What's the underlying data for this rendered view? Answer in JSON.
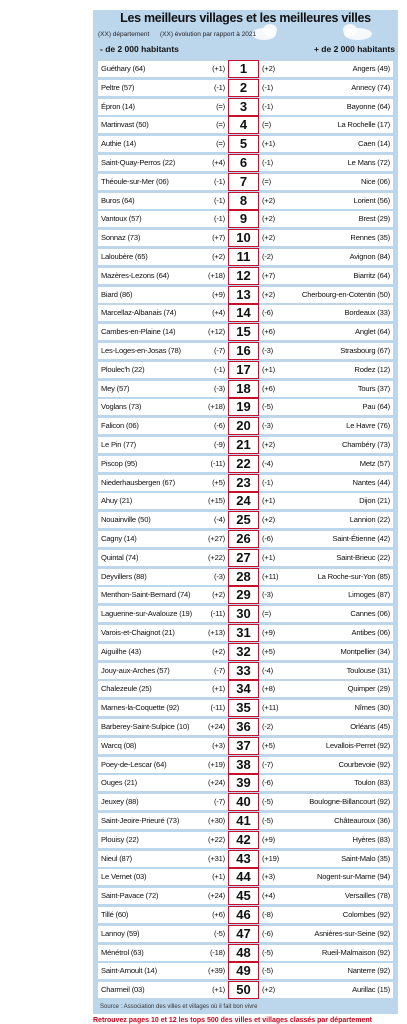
{
  "header": {
    "title": "Les meilleurs villages et les meilleures villes",
    "legend_department": "(XX) département",
    "legend_evolution": "(XX) évolution par rapport à 2021",
    "left_column": "- de 2 000 habitants",
    "right_column": "+ de 2 000 habitants"
  },
  "table": {
    "rows": [
      [
        "Guéthary (64)",
        "(+1)",
        1,
        "(+2)",
        "Angers (49)"
      ],
      [
        "Peltre (57)",
        "(-1)",
        2,
        "(-1)",
        "Annecy (74)"
      ],
      [
        "Épron (14)",
        "(=)",
        3,
        "(-1)",
        "Bayonne (64)"
      ],
      [
        "Martinvast (50)",
        "(=)",
        4,
        "(=)",
        "La Rochelle (17)"
      ],
      [
        "Authie (14)",
        "(=)",
        5,
        "(+1)",
        "Caen (14)"
      ],
      [
        "Saint-Quay-Perros (22)",
        "(+4)",
        6,
        "(-1)",
        "Le Mans (72)"
      ],
      [
        "Théoule-sur-Mer (06)",
        "(-1)",
        7,
        "(=)",
        "Nice (06)"
      ],
      [
        "Buros (64)",
        "(-1)",
        8,
        "(+2)",
        "Lorient (56)"
      ],
      [
        "Vantoux (57)",
        "(-1)",
        9,
        "(+2)",
        "Brest (29)"
      ],
      [
        "Sonnaz (73)",
        "(+7)",
        10,
        "(+2)",
        "Rennes (35)"
      ],
      [
        "Laloubère (65)",
        "(+2)",
        11,
        "(-2)",
        "Avignon (84)"
      ],
      [
        "Mazères-Lezons (64)",
        "(+18)",
        12,
        "(+7)",
        "Biarritz (64)"
      ],
      [
        "Biard (86)",
        "(+9)",
        13,
        "(+2)",
        "Cherbourg-en-Cotentin (50)"
      ],
      [
        "Marcellaz-Albanais (74)",
        "(+4)",
        14,
        "(-6)",
        "Bordeaux (33)"
      ],
      [
        "Cambes-en-Plaine (14)",
        "(+12)",
        15,
        "(+6)",
        "Anglet (64)"
      ],
      [
        "Les-Loges-en-Josas (78)",
        "(-7)",
        16,
        "(-3)",
        "Strasbourg (67)"
      ],
      [
        "Ploulec'h (22)",
        "(-1)",
        17,
        "(+1)",
        "Rodez (12)"
      ],
      [
        "Mey (57)",
        "(-3)",
        18,
        "(+6)",
        "Tours (37)"
      ],
      [
        "Voglans (73)",
        "(+18)",
        19,
        "(-5)",
        "Pau (64)"
      ],
      [
        "Falicon (06)",
        "(-6)",
        20,
        "(-3)",
        "Le Havre (76)"
      ],
      [
        "Le Pin (77)",
        "(-9)",
        21,
        "(+2)",
        "Chambéry (73)"
      ],
      [
        "Piscop (95)",
        "(-11)",
        22,
        "(-4)",
        "Metz (57)"
      ],
      [
        "Niederhausbergen (67)",
        "(+5)",
        23,
        "(-1)",
        "Nantes (44)"
      ],
      [
        "Ahuy (21)",
        "(+15)",
        24,
        "(+1)",
        "Dijon (21)"
      ],
      [
        "Nouainville (50)",
        "(-4)",
        25,
        "(+2)",
        "Lannion (22)"
      ],
      [
        "Cagny (14)",
        "(+27)",
        26,
        "(-6)",
        "Saint-Étienne (42)"
      ],
      [
        "Quintal (74)",
        "(+22)",
        27,
        "(+1)",
        "Saint-Brieuc (22)"
      ],
      [
        "Deyvillers (88)",
        "(-3)",
        28,
        "(+11)",
        "La Roche-sur-Yon (85)"
      ],
      [
        "Menthon-Saint-Bernard (74)",
        "(+2)",
        29,
        "(-3)",
        "Limoges (87)"
      ],
      [
        "Laguenne-sur-Avalouze (19)",
        "(-11)",
        30,
        "(=)",
        "Cannes (06)"
      ],
      [
        "Varois-et-Chaignot (21)",
        "(+13)",
        31,
        "(+9)",
        "Antibes (06)"
      ],
      [
        "Aiguilhe (43)",
        "(+2)",
        32,
        "(+5)",
        "Montpellier (34)"
      ],
      [
        "Jouy-aux-Arches (57)",
        "(-7)",
        33,
        "(-4)",
        "Toulouse (31)"
      ],
      [
        "Chalezeule (25)",
        "(+1)",
        34,
        "(+8)",
        "Quimper (29)"
      ],
      [
        "Marnes-la-Coquette (92)",
        "(-11)",
        35,
        "(+11)",
        "Nîmes (30)"
      ],
      [
        "Barberey-Saint-Sulpice (10)",
        "(+24)",
        36,
        "(-2)",
        "Orléans (45)"
      ],
      [
        "Warcq (08)",
        "(+3)",
        37,
        "(+5)",
        "Levallois-Perret (92)"
      ],
      [
        "Poey-de-Lescar (64)",
        "(+19)",
        38,
        "(-7)",
        "Courbevoie (92)"
      ],
      [
        "Ouges (21)",
        "(+24)",
        39,
        "(-6)",
        "Toulon (83)"
      ],
      [
        "Jeuxey (88)",
        "(-7)",
        40,
        "(-5)",
        "Boulogne-Billancourt (92)"
      ],
      [
        "Saint-Jeoire-Prieuré (73)",
        "(+30)",
        41,
        "(-5)",
        "Châteauroux (36)"
      ],
      [
        "Plouisy (22)",
        "(+22)",
        42,
        "(+9)",
        "Hyères (83)"
      ],
      [
        "Nieul (87)",
        "(+31)",
        43,
        "(+19)",
        "Saint-Malo (35)"
      ],
      [
        "Le Vernet (03)",
        "(+1)",
        44,
        "(+3)",
        "Nogent-sur-Marne (94)"
      ],
      [
        "Saint-Pavace (72)",
        "(+24)",
        45,
        "(+4)",
        "Versailles (78)"
      ],
      [
        "Tillé (60)",
        "(+6)",
        46,
        "(-8)",
        "Colombes (92)"
      ],
      [
        "Lannoy (59)",
        "(-5)",
        47,
        "(-6)",
        "Asnières-sur-Seine (92)"
      ],
      [
        "Ménétrol (63)",
        "(-18)",
        48,
        "(-5)",
        "Rueil-Malmaison (92)"
      ],
      [
        "Saint-Arnoult (14)",
        "(+39)",
        49,
        "(-5)",
        "Nanterre (92)"
      ],
      [
        "Charmeil (03)",
        "(+1)",
        50,
        "(+2)",
        "Aurillac (15)"
      ]
    ]
  },
  "footer": {
    "source": "Source : Association des villes et villages où il fait bon vivre",
    "note": "Retrouvez pages 10 et 12 les tops 500 des villes et villages classés par département"
  }
}
